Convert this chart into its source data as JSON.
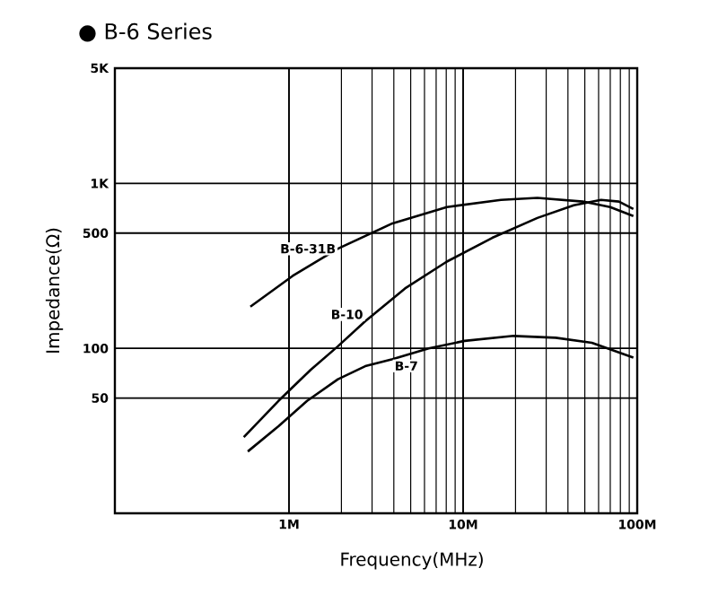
{
  "chart_data": {
    "type": "line",
    "title": "● B-6 Series",
    "xlabel": "Frequency(MHz)",
    "ylabel": "Impedance(Ω)",
    "log": "xy",
    "grid": true,
    "line_style": "solid",
    "marker": "none",
    "xlim": [
      0.1,
      100
    ],
    "xticks": [
      {
        "value": 1,
        "label": "1M"
      },
      {
        "value": 10,
        "label": "10M"
      },
      {
        "value": 100,
        "label": "100M"
      }
    ],
    "ylim": [
      10,
      5000
    ],
    "yticks": [
      50,
      100,
      500,
      {
        "value": 1000,
        "label": "1K"
      },
      {
        "value": 5000,
        "label": "5K"
      }
    ],
    "series": [
      {
        "name": "B-6-31B",
        "color": "#000000",
        "x": [
          0.6,
          1.05,
          1.91,
          3.93,
          8.07,
          16.5,
          26.7,
          48.7,
          69.9,
          95
        ],
        "values": [
          179,
          275,
          402,
          573,
          719,
          796,
          817,
          777,
          719,
          634
        ]
      },
      {
        "name": "B-10",
        "color": "#000000",
        "x": [
          0.55,
          0.87,
          1.33,
          1.91,
          2.74,
          4.64,
          8.07,
          14.7,
          26.7,
          43.2,
          61.9,
          78.5,
          95
        ],
        "values": [
          29,
          48,
          74,
          103,
          146,
          231,
          336,
          468,
          618,
          738,
          796,
          777,
          701
        ]
      },
      {
        "name": "B-7",
        "color": "#000000",
        "x": [
          0.58,
          0.87,
          1.27,
          1.91,
          2.74,
          3.93,
          6.34,
          10.2,
          19.5,
          34.0,
          54.9,
          95
        ],
        "values": [
          23.7,
          33.7,
          48,
          65,
          78,
          86,
          100,
          111,
          119,
          116,
          108,
          88
        ]
      }
    ]
  }
}
